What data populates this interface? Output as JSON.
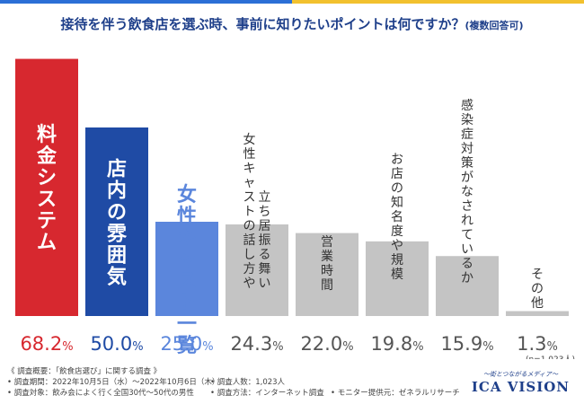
{
  "header": {
    "title": "接待を伴う飲食店を選ぶ時、事前に知りたいポイントは何ですか？",
    "subtitle": "(複数回答可)"
  },
  "chart_data": {
    "type": "bar",
    "title": "接待を伴う飲食店を選ぶ時、事前に知りたいポイントは何ですか？(複数回答可)",
    "categories": [
      {
        "label": "料金システム",
        "lines": [
          "料金システム"
        ]
      },
      {
        "label": "店内の雰囲気",
        "lines": [
          "店内の雰囲気"
        ]
      },
      {
        "label": "女性キャスト一覧",
        "lines": [
          "女性キャスト一覧"
        ]
      },
      {
        "label": "女性キャストの話し方や立ち居振る舞い",
        "lines": [
          "女性キャストの話し方や",
          "立ち居振る舞い"
        ]
      },
      {
        "label": "営業時間",
        "lines": [
          "営業時間"
        ]
      },
      {
        "label": "お店の知名度や規模",
        "lines": [
          "お店の知名度や規模"
        ]
      },
      {
        "label": "感染症対策がなされているか",
        "lines": [
          "感染症対策がなされているか"
        ]
      },
      {
        "label": "その他",
        "lines": [
          "その他"
        ]
      }
    ],
    "values": [
      68.2,
      50.0,
      25.0,
      24.3,
      22.0,
      19.8,
      15.9,
      1.3
    ],
    "value_labels": [
      {
        "num": "68.2",
        "unit": "%"
      },
      {
        "num": "50.0",
        "unit": "%"
      },
      {
        "num": "25.0",
        "unit": "%"
      },
      {
        "num": "24.3",
        "unit": "%"
      },
      {
        "num": "22.0",
        "unit": "%"
      },
      {
        "num": "19.8",
        "unit": "%"
      },
      {
        "num": "15.9",
        "unit": "%"
      },
      {
        "num": "1.3",
        "unit": "%"
      }
    ],
    "colors": [
      "#d7282f",
      "#1f4ba5",
      "#5b86dc",
      "#c4c4c4",
      "#c4c4c4",
      "#c4c4c4",
      "#c4c4c4",
      "#c4c4c4"
    ],
    "label_colors": [
      "#ffffff",
      "#ffffff",
      "#5b86dc",
      "#333333",
      "#333333",
      "#333333",
      "#333333",
      "#333333"
    ],
    "value_colors": [
      "#d7282f",
      "#1f4ba5",
      "#5b86dc",
      "#555555",
      "#555555",
      "#555555",
      "#555555",
      "#555555"
    ],
    "sample_note": "(n=1,023人)",
    "ylim": [
      0,
      70
    ],
    "xlabel": "",
    "ylabel": "",
    "grid": false
  },
  "notes": {
    "heading": "《 調査概要：「飲食店選び」に関する調査 》",
    "period": "• 調査期間：2022年10月5日（水）～2022年10月6日（木）",
    "people": "• 調査人数：1,023人",
    "target": "• 調査対象：飲み会によく行く全国30代～50代の男性",
    "method": "• 調査方法：インターネット調査",
    "provider": "• モニター提供元：ゼネラルリサーチ"
  },
  "brand": {
    "tagline": "〜街とつながるメディア〜",
    "logo": "ICA VISION"
  },
  "colors": {
    "title": "#1e3f8a",
    "stripe_left": "#2b6fd6",
    "stripe_right": "#f2c12e"
  }
}
